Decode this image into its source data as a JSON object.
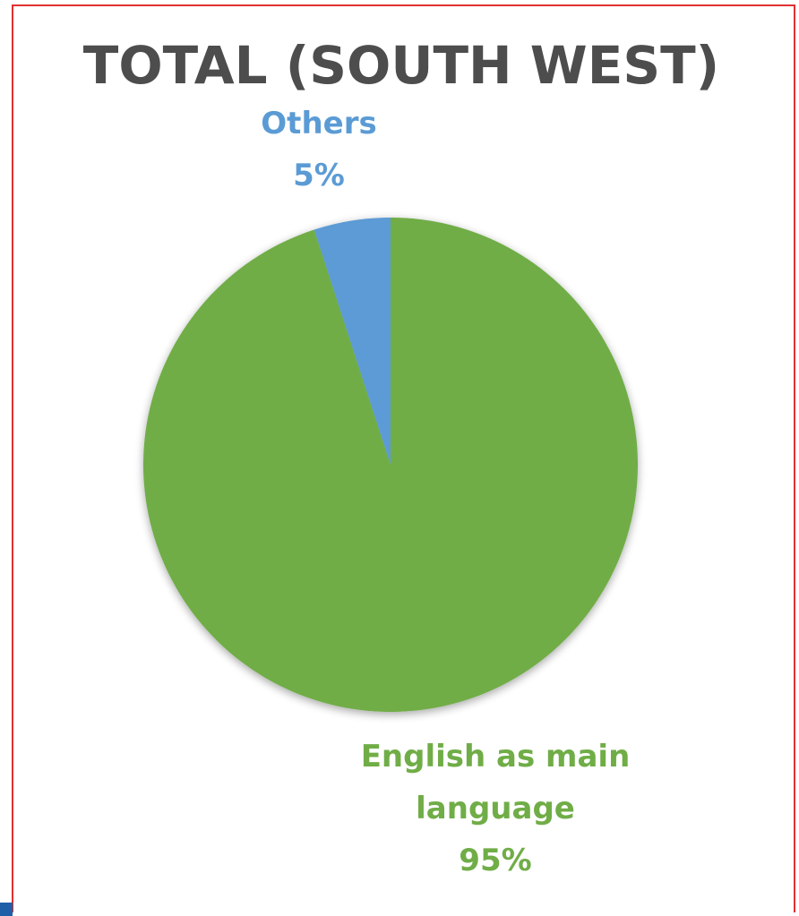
{
  "chart_data": {
    "type": "pie",
    "title": "TOTAL (SOUTH WEST)",
    "slices": [
      {
        "label_lines": [
          "English as main",
          "language"
        ],
        "value": 95,
        "value_label": "95%",
        "color": "#70ad47"
      },
      {
        "label_lines": [
          "Others"
        ],
        "value": 5,
        "value_label": "5%",
        "color": "#5b9bd5"
      }
    ],
    "legend": "none",
    "label_style": "outside data labels colored like slices"
  },
  "colors": {
    "frame_border": "#e03030",
    "corner_mark": "#1f5fa8",
    "title": "#4d4d4d"
  }
}
